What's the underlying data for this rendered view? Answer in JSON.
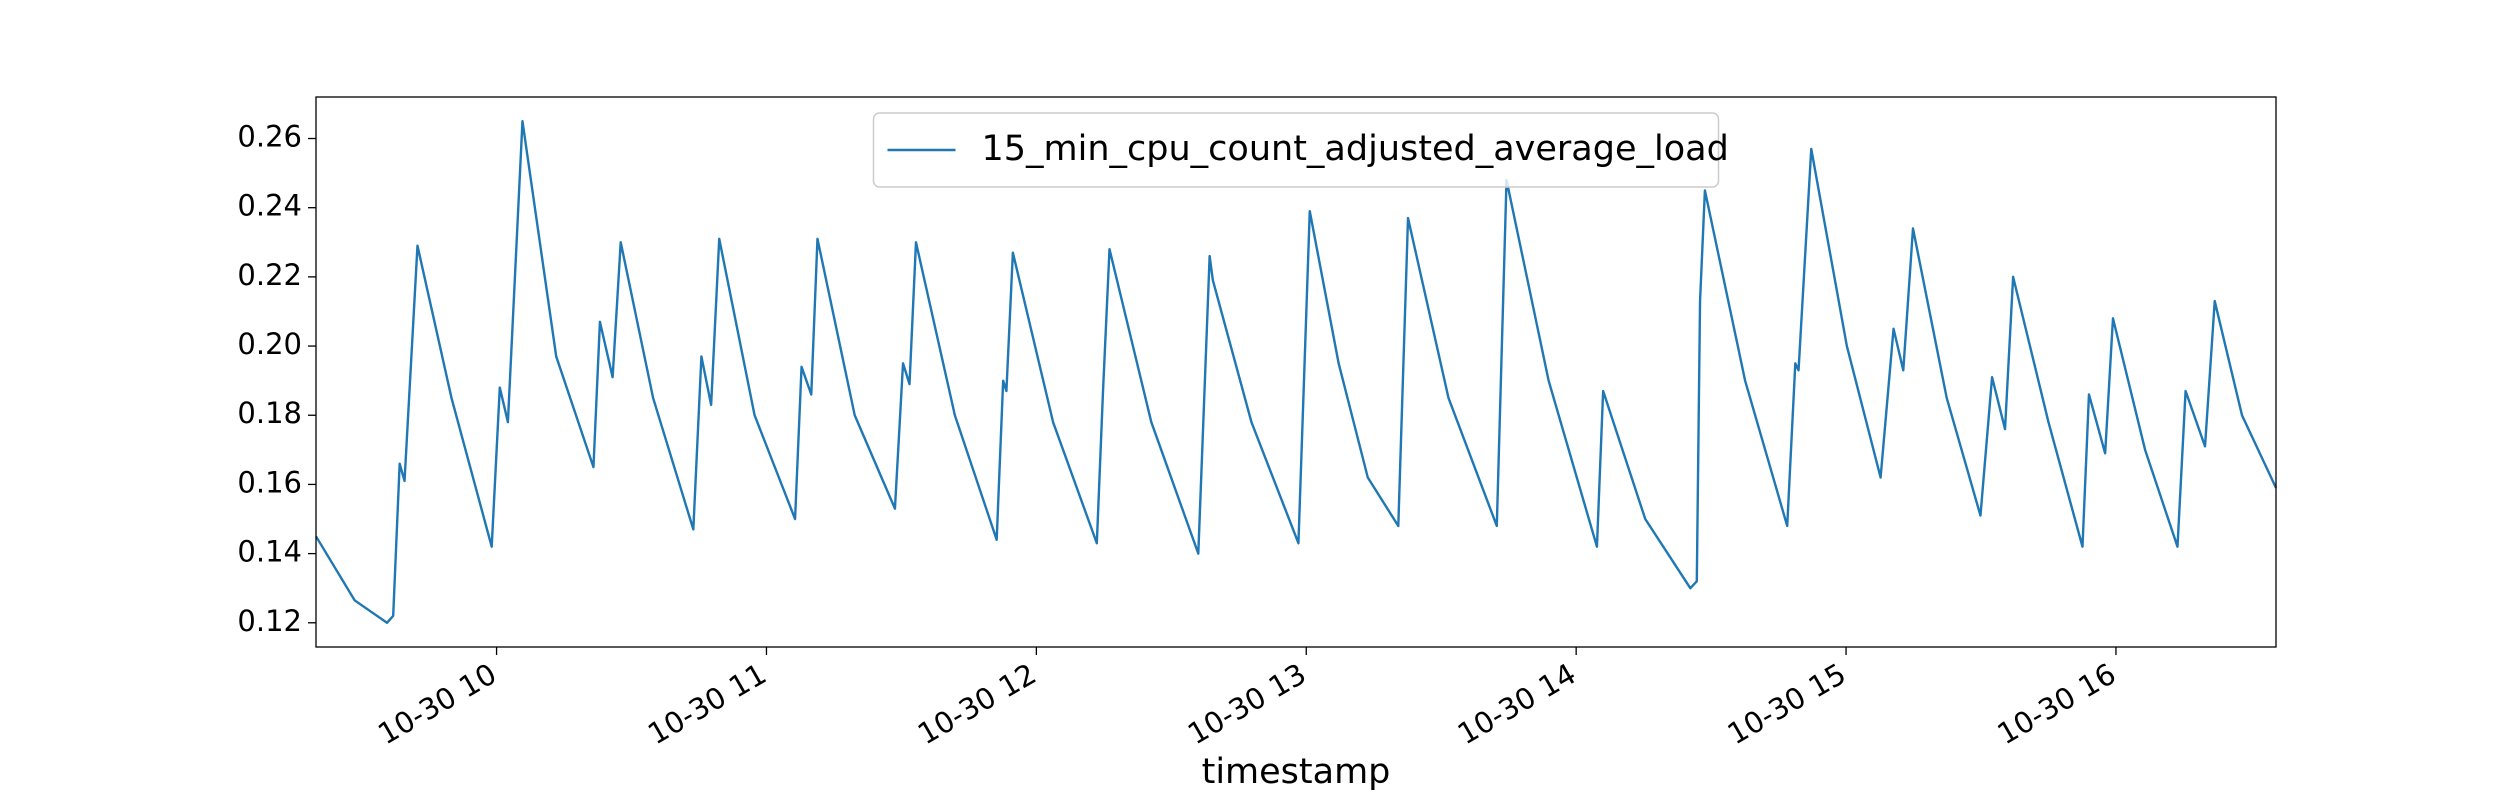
{
  "chart_data": {
    "type": "line",
    "xlabel": "timestamp",
    "legend": "upper center",
    "x": [
      9.331,
      9.474,
      9.594,
      9.617,
      9.641,
      9.659,
      9.707,
      9.833,
      9.982,
      10.012,
      10.042,
      10.096,
      10.221,
      10.359,
      10.383,
      10.43,
      10.46,
      10.58,
      10.729,
      10.759,
      10.795,
      10.825,
      10.956,
      11.106,
      11.13,
      11.166,
      11.189,
      11.327,
      11.476,
      11.506,
      11.53,
      11.554,
      11.698,
      11.853,
      11.877,
      11.889,
      11.913,
      12.062,
      12.224,
      12.247,
      12.271,
      12.426,
      12.6,
      12.642,
      12.654,
      12.797,
      12.971,
      13.013,
      13.12,
      13.228,
      13.341,
      13.377,
      13.527,
      13.706,
      13.742,
      13.898,
      14.077,
      14.1,
      14.256,
      14.423,
      14.447,
      14.459,
      14.477,
      14.626,
      14.782,
      14.812,
      14.824,
      14.871,
      15.003,
      15.128,
      15.176,
      15.212,
      15.248,
      15.373,
      15.498,
      15.541,
      15.589,
      15.619,
      15.75,
      15.876,
      15.9,
      15.96,
      15.989,
      16.108,
      16.228,
      16.258,
      16.33,
      16.366,
      16.467,
      16.593
    ],
    "series": [
      {
        "name": "15_min_cpu_count_adjusted_average_load",
        "color": "#1f77b4",
        "values": [
          0.145,
          0.1265,
          0.12,
          0.122,
          0.166,
          0.161,
          0.229,
          0.185,
          0.142,
          0.188,
          0.178,
          0.265,
          0.197,
          0.165,
          0.207,
          0.191,
          0.23,
          0.185,
          0.147,
          0.197,
          0.183,
          0.231,
          0.18,
          0.15,
          0.194,
          0.186,
          0.231,
          0.18,
          0.153,
          0.195,
          0.189,
          0.23,
          0.18,
          0.144,
          0.19,
          0.187,
          0.227,
          0.178,
          0.143,
          0.187,
          0.228,
          0.178,
          0.14,
          0.226,
          0.219,
          0.178,
          0.143,
          0.239,
          0.195,
          0.162,
          0.148,
          0.237,
          0.185,
          0.148,
          0.248,
          0.19,
          0.142,
          0.187,
          0.15,
          0.13,
          0.132,
          0.213,
          0.245,
          0.19,
          0.148,
          0.195,
          0.193,
          0.257,
          0.2,
          0.162,
          0.205,
          0.193,
          0.234,
          0.185,
          0.151,
          0.191,
          0.176,
          0.22,
          0.178,
          0.142,
          0.186,
          0.169,
          0.208,
          0.17,
          0.142,
          0.187,
          0.171,
          0.213,
          0.18,
          0.159
        ]
      }
    ],
    "xlim": [
      9.331,
      16.593
    ],
    "xticks": [
      {
        "value": 10,
        "label": "10-30 10"
      },
      {
        "value": 11,
        "label": "10-30 11"
      },
      {
        "value": 12,
        "label": "10-30 12"
      },
      {
        "value": 13,
        "label": "10-30 13"
      },
      {
        "value": 14,
        "label": "10-30 14"
      },
      {
        "value": 15,
        "label": "10-30 15"
      },
      {
        "value": 16,
        "label": "10-30 16"
      }
    ],
    "ylim": [
      0.113,
      0.272
    ],
    "yticks": [
      0.12,
      0.14,
      0.16,
      0.18,
      {
        "value": 0.2,
        "label": "0.20"
      },
      0.22,
      0.24,
      0.26
    ]
  }
}
